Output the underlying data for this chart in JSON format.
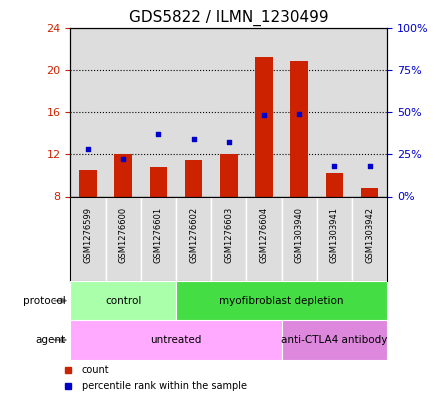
{
  "title": "GDS5822 / ILMN_1230499",
  "samples": [
    "GSM1276599",
    "GSM1276600",
    "GSM1276601",
    "GSM1276602",
    "GSM1276603",
    "GSM1276604",
    "GSM1303940",
    "GSM1303941",
    "GSM1303942"
  ],
  "count_values": [
    10.5,
    12.0,
    10.8,
    11.5,
    12.0,
    21.2,
    20.8,
    10.2,
    8.8
  ],
  "percentile_values": [
    28,
    22,
    37,
    34,
    32,
    48,
    49,
    18,
    18
  ],
  "ylim_left": [
    8,
    24
  ],
  "ylim_right": [
    0,
    100
  ],
  "yticks_left": [
    8,
    12,
    16,
    20,
    24
  ],
  "yticks_right": [
    0,
    25,
    50,
    75,
    100
  ],
  "bar_color": "#cc2200",
  "dot_color": "#0000cc",
  "bar_width": 0.5,
  "protocol_groups": [
    {
      "label": "control",
      "start": 0,
      "end": 3,
      "color": "#aaffaa"
    },
    {
      "label": "myofibroblast depletion",
      "start": 3,
      "end": 9,
      "color": "#44dd44"
    }
  ],
  "agent_groups": [
    {
      "label": "untreated",
      "start": 0,
      "end": 6,
      "color": "#ffaaff"
    },
    {
      "label": "anti-CTLA4 antibody",
      "start": 6,
      "end": 9,
      "color": "#dd88dd"
    }
  ],
  "legend_items": [
    {
      "label": "count",
      "color": "#cc2200"
    },
    {
      "label": "percentile rank within the sample",
      "color": "#0000cc"
    }
  ],
  "title_fontsize": 11,
  "axis_color_left": "#cc2200",
  "axis_color_right": "#0000cc",
  "bg_color": "#dddddd",
  "plot_bg": "#dddddd"
}
